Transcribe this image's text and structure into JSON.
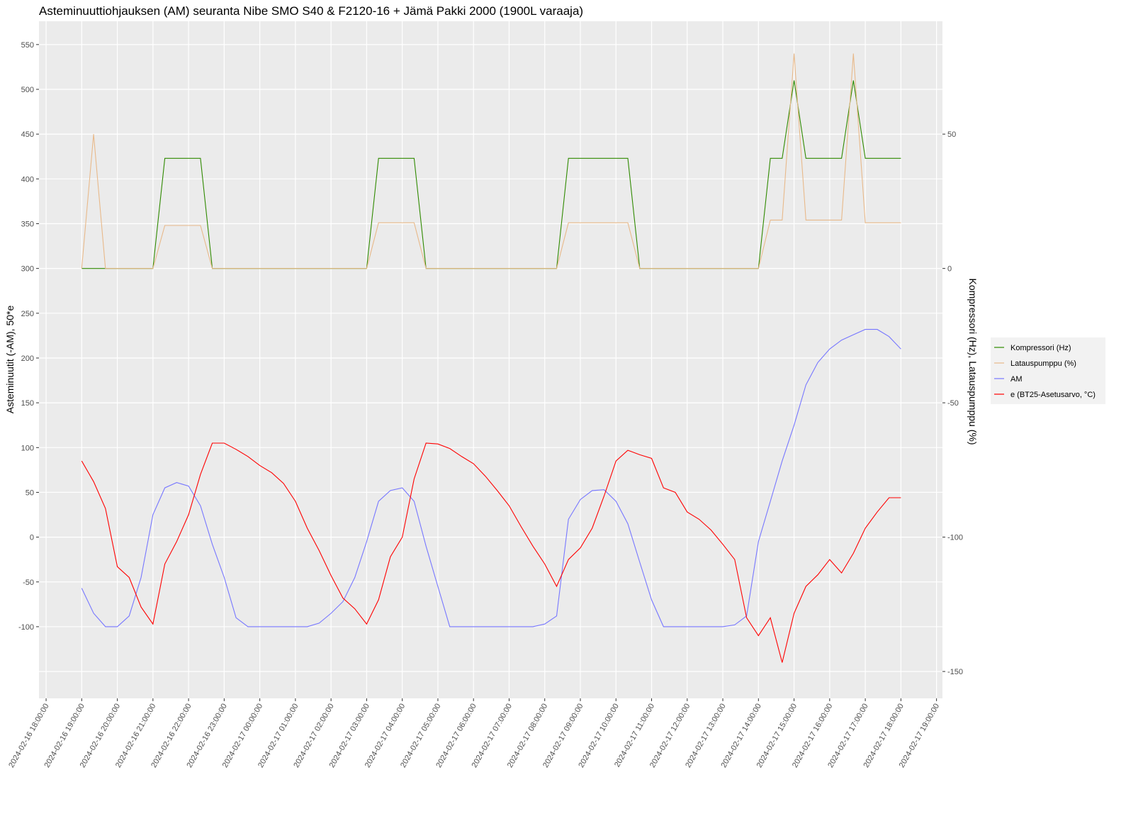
{
  "chart_data": {
    "type": "line",
    "title": "Asteminuuttiohjauksen (AM) seuranta Nibe SMO S40 & F2120-16 + Jämä Pakki 2000 (1900L varaaja)",
    "y_label": "Asteminuutit (-AM), 50*e",
    "y2_label": "Kompressori (Hz), Latauspumppu (%)",
    "x": [
      "2024-02-16 19:00:00",
      "2024-02-16 19:20:00",
      "2024-02-16 19:40:00",
      "2024-02-16 20:00:00",
      "2024-02-16 20:20:00",
      "2024-02-16 20:40:00",
      "2024-02-16 21:00:00",
      "2024-02-16 21:20:00",
      "2024-02-16 21:40:00",
      "2024-02-16 22:00:00",
      "2024-02-16 22:20:00",
      "2024-02-16 22:40:00",
      "2024-02-16 23:00:00",
      "2024-02-16 23:20:00",
      "2024-02-16 23:40:00",
      "2024-02-17 00:00:00",
      "2024-02-17 00:20:00",
      "2024-02-17 00:40:00",
      "2024-02-17 01:00:00",
      "2024-02-17 01:20:00",
      "2024-02-17 01:40:00",
      "2024-02-17 02:00:00",
      "2024-02-17 02:20:00",
      "2024-02-17 02:40:00",
      "2024-02-17 03:00:00",
      "2024-02-17 03:20:00",
      "2024-02-17 03:40:00",
      "2024-02-17 04:00:00",
      "2024-02-17 04:20:00",
      "2024-02-17 04:40:00",
      "2024-02-17 05:00:00",
      "2024-02-17 05:20:00",
      "2024-02-17 05:40:00",
      "2024-02-17 06:00:00",
      "2024-02-17 06:20:00",
      "2024-02-17 06:40:00",
      "2024-02-17 07:00:00",
      "2024-02-17 07:20:00",
      "2024-02-17 07:40:00",
      "2024-02-17 08:00:00",
      "2024-02-17 08:20:00",
      "2024-02-17 08:40:00",
      "2024-02-17 09:00:00",
      "2024-02-17 09:20:00",
      "2024-02-17 09:40:00",
      "2024-02-17 10:00:00",
      "2024-02-17 10:20:00",
      "2024-02-17 10:40:00",
      "2024-02-17 11:00:00",
      "2024-02-17 11:20:00",
      "2024-02-17 11:40:00",
      "2024-02-17 12:00:00",
      "2024-02-17 12:20:00",
      "2024-02-17 12:40:00",
      "2024-02-17 13:00:00",
      "2024-02-17 13:20:00",
      "2024-02-17 13:40:00",
      "2024-02-17 14:00:00",
      "2024-02-17 14:20:00",
      "2024-02-17 14:40:00",
      "2024-02-17 15:00:00",
      "2024-02-17 15:20:00",
      "2024-02-17 15:40:00",
      "2024-02-17 16:00:00",
      "2024-02-17 16:20:00",
      "2024-02-17 16:40:00",
      "2024-02-17 17:00:00",
      "2024-02-17 17:20:00",
      "2024-02-17 17:40:00",
      "2024-02-17 18:00:00"
    ],
    "series": [
      {
        "name": "Kompressori (Hz)",
        "color": "#2f8a00",
        "axis": "y2",
        "values": [
          0,
          0,
          0,
          0,
          0,
          0,
          0,
          41,
          41,
          41,
          41,
          0,
          0,
          0,
          0,
          0,
          0,
          0,
          0,
          0,
          0,
          0,
          0,
          0,
          0,
          41,
          41,
          41,
          41,
          0,
          0,
          0,
          0,
          0,
          0,
          0,
          0,
          0,
          0,
          0,
          0,
          41,
          41,
          41,
          41,
          41,
          41,
          0,
          0,
          0,
          0,
          0,
          0,
          0,
          0,
          0,
          0,
          0,
          41,
          41,
          70,
          41,
          41,
          41,
          41,
          70,
          41,
          41,
          41,
          41
        ]
      },
      {
        "name": "Latauspumppu (%)",
        "color": "#e8b98a",
        "axis": "y2",
        "values": [
          0,
          50,
          0,
          0,
          0,
          0,
          0,
          16,
          16,
          16,
          16,
          0,
          0,
          0,
          0,
          0,
          0,
          0,
          0,
          0,
          0,
          0,
          0,
          0,
          0,
          17,
          17,
          17,
          17,
          0,
          0,
          0,
          0,
          0,
          0,
          0,
          0,
          0,
          0,
          0,
          0,
          17,
          17,
          17,
          17,
          17,
          17,
          0,
          0,
          0,
          0,
          0,
          0,
          0,
          0,
          0,
          0,
          0,
          18,
          18,
          80,
          18,
          18,
          18,
          18,
          80,
          17,
          17,
          17,
          17
        ]
      },
      {
        "name": "AM",
        "color": "#7777ff",
        "values": [
          -57,
          -85,
          -100,
          -100,
          -88,
          -45,
          25,
          55,
          61,
          57,
          35,
          -8,
          -45,
          -90,
          -100,
          -100,
          -100,
          -100,
          -100,
          -100,
          -96,
          -85,
          -72,
          -45,
          -5,
          40,
          52,
          55,
          40,
          -10,
          -55,
          -100,
          -100,
          -100,
          -100,
          -100,
          -100,
          -100,
          -100,
          -97,
          -88,
          20,
          42,
          52,
          53,
          40,
          15,
          -28,
          -70,
          -100,
          -100,
          -100,
          -100,
          -100,
          -100,
          -98,
          -88,
          -5,
          40,
          85,
          125,
          170,
          195,
          210,
          220,
          226,
          232,
          232,
          224,
          210
        ]
      },
      {
        "name": "e (BT25-Asetusarvo, °C)",
        "color": "#ff0000",
        "values": [
          85,
          62,
          32,
          -33,
          -45,
          -78,
          -97,
          -30,
          -5,
          25,
          70,
          105,
          105,
          98,
          90,
          80,
          72,
          60,
          40,
          10,
          -15,
          -43,
          -68,
          -80,
          -97,
          -70,
          -22,
          0,
          65,
          105,
          104,
          99,
          90,
          82,
          68,
          52,
          35,
          12,
          -10,
          -30,
          -55,
          -25,
          -12,
          10,
          46,
          85,
          97,
          92,
          88,
          55,
          50,
          28,
          20,
          8,
          -8,
          -25,
          -90,
          -110,
          -90,
          -140,
          -85,
          -55,
          -42,
          -25,
          -40,
          -18,
          10,
          28,
          44,
          44
        ]
      }
    ],
    "xlim": [
      "2024-02-16 17:48:00",
      "2024-02-17 19:10:00"
    ],
    "xticks": [
      "2024-02-16 18:00:00",
      "2024-02-16 19:00:00",
      "2024-02-16 20:00:00",
      "2024-02-16 21:00:00",
      "2024-02-16 22:00:00",
      "2024-02-16 23:00:00",
      "2024-02-17 00:00:00",
      "2024-02-17 01:00:00",
      "2024-02-17 02:00:00",
      "2024-02-17 03:00:00",
      "2024-02-17 04:00:00",
      "2024-02-17 05:00:00",
      "2024-02-17 06:00:00",
      "2024-02-17 07:00:00",
      "2024-02-17 08:00:00",
      "2024-02-17 09:00:00",
      "2024-02-17 10:00:00",
      "2024-02-17 11:00:00",
      "2024-02-17 12:00:00",
      "2024-02-17 13:00:00",
      "2024-02-17 14:00:00",
      "2024-02-17 15:00:00",
      "2024-02-17 16:00:00",
      "2024-02-17 17:00:00",
      "2024-02-17 18:00:00",
      "2024-02-17 19:00:00"
    ],
    "ylim": [
      -180,
      576
    ],
    "yticks": [
      -100,
      -50,
      0,
      50,
      100,
      150,
      200,
      250,
      300,
      350,
      400,
      450,
      500,
      550
    ],
    "y2lim": [
      -160,
      92
    ],
    "y2ticks": [
      -150,
      -100,
      -50,
      0,
      50
    ],
    "grid": true,
    "legend": "right"
  }
}
